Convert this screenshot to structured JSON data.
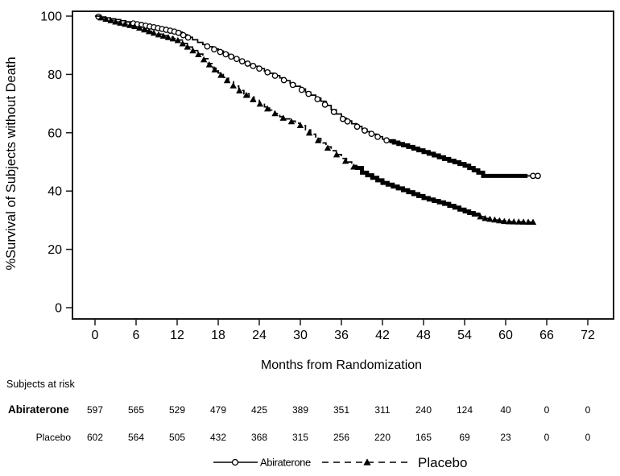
{
  "chart_data": {
    "type": "line",
    "subtype": "kaplan-meier-step",
    "title": "",
    "xlabel": "Months from Randomization",
    "ylabel": "%Survival of Subjects without Death",
    "xlim": [
      0,
      72
    ],
    "ylim": [
      0,
      100
    ],
    "x_ticks": [
      0,
      6,
      12,
      18,
      24,
      30,
      36,
      42,
      48,
      54,
      60,
      66,
      72
    ],
    "y_ticks": [
      0,
      20,
      40,
      60,
      80,
      100
    ],
    "grid": false,
    "legend_position": "bottom-center",
    "series": [
      {
        "name": "Abiraterone",
        "line_style": "solid",
        "marker": "open-circle",
        "points": [
          [
            0,
            100
          ],
          [
            3,
            98.8
          ],
          [
            6,
            97.3
          ],
          [
            9,
            96
          ],
          [
            12,
            94.5
          ],
          [
            15,
            91
          ],
          [
            18,
            88
          ],
          [
            21,
            85
          ],
          [
            24,
            82
          ],
          [
            27,
            78.8
          ],
          [
            30,
            75
          ],
          [
            33,
            70.8
          ],
          [
            36,
            65
          ],
          [
            39,
            61.2
          ],
          [
            42,
            57.8
          ],
          [
            45,
            55.7
          ],
          [
            48,
            53.4
          ],
          [
            51,
            51
          ],
          [
            54,
            48.7
          ],
          [
            56,
            46.3
          ],
          [
            56.7,
            45.2
          ],
          [
            64.7,
            45.2
          ]
        ],
        "censor_marks_months": [
          0.5,
          5.6,
          6.2,
          6.8,
          7.4,
          8,
          8.6,
          9.2,
          9.8,
          10.4,
          11,
          11.6,
          12.2,
          12.9,
          13.6,
          16.4,
          17.4,
          18.3,
          19.1,
          19.9,
          20.7,
          21.5,
          22.3,
          23.1,
          24,
          25.2,
          26.3,
          27.6,
          28.9,
          30.2,
          31.2,
          32.5,
          33.6,
          34.9,
          36.2,
          36.9,
          38.3,
          39.4,
          40.4,
          41.3,
          42.6,
          64,
          64.7
        ],
        "dense_censor_segments": [
          [
            43,
            63.2
          ]
        ]
      },
      {
        "name": "Placebo",
        "line_style": "dashed",
        "marker": "filled-triangle",
        "points": [
          [
            0,
            100
          ],
          [
            3,
            98
          ],
          [
            6,
            96.3
          ],
          [
            9,
            93.8
          ],
          [
            12,
            91.8
          ],
          [
            15,
            87
          ],
          [
            18,
            80.5
          ],
          [
            21,
            74.5
          ],
          [
            24,
            70
          ],
          [
            27,
            65.5
          ],
          [
            30,
            62.5
          ],
          [
            33,
            56.5
          ],
          [
            36,
            51.2
          ],
          [
            39,
            46.3
          ],
          [
            42,
            42.8
          ],
          [
            45,
            40.3
          ],
          [
            48,
            37.6
          ],
          [
            51,
            35.6
          ],
          [
            54,
            33
          ],
          [
            57,
            30.6
          ],
          [
            60,
            29.5
          ],
          [
            64,
            29.3
          ]
        ],
        "censor_marks_months": [
          0.9,
          1.6,
          2.3,
          3,
          3.7,
          4.4,
          5.1,
          5.8,
          6.5,
          7.2,
          7.9,
          8.6,
          9.3,
          10,
          10.7,
          11.4,
          12.1,
          12.8,
          13.5,
          14.3,
          15.1,
          15.9,
          16.7,
          17.5,
          18.4,
          19.3,
          20.2,
          21.1,
          22.1,
          23.1,
          24.1,
          25.2,
          26.3,
          27.5,
          28.7,
          30,
          31.3,
          32.6,
          34,
          35.3,
          36.6,
          37.8,
          56.3,
          57,
          57.7,
          58.4,
          59.1,
          59.8,
          60.5,
          61.2,
          61.9,
          62.6,
          63.3,
          64
        ],
        "dense_censor_segments": [
          [
            38,
            56
          ]
        ]
      }
    ]
  },
  "risk_table": {
    "title": "Subjects at risk",
    "months": [
      0,
      6,
      12,
      18,
      24,
      30,
      36,
      42,
      48,
      54,
      60,
      66,
      72
    ],
    "rows": [
      {
        "label": "Abiraterone",
        "bold": true,
        "values": [
          597,
          565,
          529,
          479,
          425,
          389,
          351,
          311,
          240,
          124,
          40,
          0,
          0
        ]
      },
      {
        "label": "Placebo",
        "bold": false,
        "values": [
          602,
          564,
          505,
          432,
          368,
          315,
          256,
          220,
          165,
          69,
          23,
          0,
          0
        ]
      }
    ]
  },
  "legend": {
    "items": [
      {
        "label": "Abiraterone",
        "marker": "open-circle",
        "line": "solid"
      },
      {
        "label": "Placebo",
        "marker": "filled-triangle",
        "line": "dashed"
      }
    ]
  },
  "colors": {
    "foreground": "#000000",
    "background": "#ffffff",
    "axis": "#1a1a1a"
  }
}
